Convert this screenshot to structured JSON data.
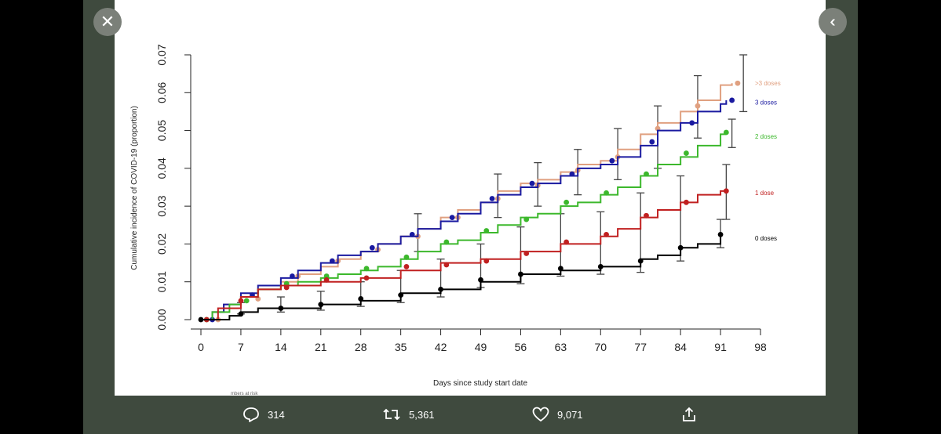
{
  "viewer": {
    "close_icon": "close-icon",
    "collapse_icon": "double-chevron-left-icon"
  },
  "actions": {
    "reply_count": "314",
    "retweet_count": "5,361",
    "like_count": "9,071"
  },
  "chart_data": {
    "type": "line",
    "title": "",
    "xlabel": "Days since study start date",
    "ylabel": "Cumulative incidence of COVID-19 (proportion)",
    "xlim": [
      0,
      98
    ],
    "ylim": [
      0,
      0.07
    ],
    "xticks": [
      0,
      7,
      14,
      21,
      28,
      35,
      42,
      49,
      56,
      63,
      70,
      77,
      84,
      91,
      98
    ],
    "yticks": [
      "0.00",
      "0.01",
      "0.02",
      "0.03",
      "0.04",
      "0.05",
      "0.06",
      "0.07"
    ],
    "series": [
      {
        "name": ">3 doses",
        "color": "#e0a080",
        "x": [
          0,
          2,
          4,
          7,
          10,
          14,
          17,
          21,
          24,
          28,
          31,
          35,
          38,
          42,
          45,
          49,
          52,
          56,
          59,
          63,
          66,
          70,
          73,
          77,
          80,
          84,
          87,
          91,
          93
        ],
        "y": [
          0,
          0.002,
          0.004,
          0.006,
          0.008,
          0.01,
          0.012,
          0.014,
          0.016,
          0.018,
          0.02,
          0.022,
          0.024,
          0.027,
          0.029,
          0.031,
          0.034,
          0.036,
          0.037,
          0.039,
          0.041,
          0.042,
          0.045,
          0.049,
          0.052,
          0.055,
          0.058,
          0.062,
          0.0625
        ],
        "points": [
          [
            3,
            0
          ],
          [
            10,
            0.0055
          ],
          [
            17,
            0.0115
          ],
          [
            24,
            0.0155
          ],
          [
            31,
            0.0185
          ],
          [
            38,
            0.022
          ],
          [
            45,
            0.027
          ],
          [
            52,
            0.032
          ],
          [
            59,
            0.0355
          ],
          [
            66,
            0.0395
          ],
          [
            73,
            0.043
          ],
          [
            80,
            0.0505
          ],
          [
            87,
            0.0565
          ],
          [
            94,
            0.0625
          ]
        ]
      },
      {
        "name": "3 doses",
        "color": "#1a1aa0",
        "x": [
          0,
          2,
          4,
          7,
          10,
          14,
          17,
          21,
          24,
          28,
          31,
          35,
          38,
          42,
          45,
          49,
          52,
          56,
          59,
          63,
          66,
          70,
          73,
          77,
          80,
          84,
          87,
          91,
          92
        ],
        "y": [
          0,
          0.002,
          0.004,
          0.007,
          0.009,
          0.011,
          0.013,
          0.015,
          0.017,
          0.018,
          0.02,
          0.022,
          0.024,
          0.026,
          0.028,
          0.031,
          0.033,
          0.035,
          0.036,
          0.038,
          0.04,
          0.041,
          0.043,
          0.046,
          0.05,
          0.052,
          0.055,
          0.057,
          0.058
        ],
        "points": [
          [
            2,
            0
          ],
          [
            9,
            0.0065
          ],
          [
            16,
            0.0115
          ],
          [
            23,
            0.0155
          ],
          [
            30,
            0.019
          ],
          [
            37,
            0.0225
          ],
          [
            44,
            0.027
          ],
          [
            51,
            0.032
          ],
          [
            58,
            0.036
          ],
          [
            65,
            0.0385
          ],
          [
            72,
            0.042
          ],
          [
            79,
            0.047
          ],
          [
            86,
            0.052
          ],
          [
            93,
            0.058
          ]
        ]
      },
      {
        "name": "2 doses",
        "color": "#3cb82c",
        "x": [
          0,
          2,
          5,
          7,
          10,
          14,
          17,
          21,
          24,
          28,
          31,
          35,
          38,
          42,
          45,
          49,
          52,
          56,
          59,
          63,
          66,
          70,
          73,
          77,
          80,
          84,
          87,
          91,
          92
        ],
        "y": [
          0,
          0.002,
          0.004,
          0.006,
          0.008,
          0.009,
          0.01,
          0.011,
          0.012,
          0.013,
          0.014,
          0.016,
          0.018,
          0.02,
          0.021,
          0.023,
          0.025,
          0.027,
          0.028,
          0.03,
          0.031,
          0.033,
          0.035,
          0.038,
          0.041,
          0.043,
          0.046,
          0.049,
          0.049
        ],
        "points": [
          [
            1,
            0
          ],
          [
            8,
            0.005
          ],
          [
            15,
            0.0095
          ],
          [
            22,
            0.0115
          ],
          [
            29,
            0.0135
          ],
          [
            36,
            0.0165
          ],
          [
            43,
            0.0205
          ],
          [
            50,
            0.0235
          ],
          [
            57,
            0.0265
          ],
          [
            64,
            0.031
          ],
          [
            71,
            0.0335
          ],
          [
            78,
            0.0385
          ],
          [
            85,
            0.044
          ],
          [
            92,
            0.0495
          ]
        ]
      },
      {
        "name": "1 dose",
        "color": "#c02020",
        "x": [
          0,
          3,
          7,
          10,
          14,
          21,
          28,
          35,
          42,
          49,
          56,
          63,
          70,
          73,
          77,
          80,
          84,
          87,
          91,
          92
        ],
        "y": [
          0,
          0.003,
          0.006,
          0.008,
          0.009,
          0.01,
          0.011,
          0.013,
          0.015,
          0.016,
          0.018,
          0.02,
          0.022,
          0.024,
          0.027,
          0.029,
          0.031,
          0.033,
          0.034,
          0.034
        ],
        "points": [
          [
            1,
            0
          ],
          [
            7,
            0.005
          ],
          [
            15,
            0.0085
          ],
          [
            22,
            0.0105
          ],
          [
            29,
            0.011
          ],
          [
            36,
            0.014
          ],
          [
            43,
            0.0145
          ],
          [
            50,
            0.0155
          ],
          [
            57,
            0.0175
          ],
          [
            64,
            0.0205
          ],
          [
            71,
            0.0225
          ],
          [
            78,
            0.0275
          ],
          [
            85,
            0.031
          ],
          [
            92,
            0.034
          ]
        ]
      },
      {
        "name": "0 doses",
        "color": "#000000",
        "x": [
          0,
          5,
          7,
          10,
          14,
          21,
          28,
          35,
          42,
          49,
          56,
          63,
          70,
          77,
          80,
          84,
          87,
          91
        ],
        "y": [
          0,
          0.001,
          0.002,
          0.003,
          0.003,
          0.004,
          0.005,
          0.007,
          0.008,
          0.01,
          0.012,
          0.013,
          0.014,
          0.016,
          0.017,
          0.019,
          0.02,
          0.022
        ],
        "points": [
          [
            0,
            0
          ],
          [
            7,
            0.0015
          ],
          [
            14,
            0.003
          ],
          [
            21,
            0.004
          ],
          [
            28,
            0.0055
          ],
          [
            35,
            0.0065
          ],
          [
            42,
            0.008
          ],
          [
            49,
            0.0105
          ],
          [
            56,
            0.012
          ],
          [
            63,
            0.0135
          ],
          [
            70,
            0.014
          ],
          [
            77,
            0.0155
          ],
          [
            84,
            0.019
          ],
          [
            91,
            0.0225
          ]
        ]
      }
    ],
    "error_bars": [
      {
        "x": 7,
        "low": 0.0015,
        "high": 0.0045
      },
      {
        "x": 14,
        "low": 0.002,
        "high": 0.006
      },
      {
        "x": 21,
        "low": 0.0025,
        "high": 0.0075
      },
      {
        "x": 28,
        "low": 0.0035,
        "high": 0.01
      },
      {
        "x": 35,
        "low": 0.0045,
        "high": 0.013
      },
      {
        "x": 38,
        "low": 0.018,
        "high": 0.028
      },
      {
        "x": 42,
        "low": 0.006,
        "high": 0.016
      },
      {
        "x": 49,
        "low": 0.0085,
        "high": 0.02
      },
      {
        "x": 52,
        "low": 0.027,
        "high": 0.0385
      },
      {
        "x": 56,
        "low": 0.0095,
        "high": 0.0245
      },
      {
        "x": 59,
        "low": 0.03,
        "high": 0.0415
      },
      {
        "x": 63,
        "low": 0.0115,
        "high": 0.028
      },
      {
        "x": 66,
        "low": 0.033,
        "high": 0.045
      },
      {
        "x": 70,
        "low": 0.012,
        "high": 0.0285
      },
      {
        "x": 73,
        "low": 0.037,
        "high": 0.0505
      },
      {
        "x": 77,
        "low": 0.0125,
        "high": 0.0335
      },
      {
        "x": 80,
        "low": 0.04,
        "high": 0.0565
      },
      {
        "x": 84,
        "low": 0.0155,
        "high": 0.038
      },
      {
        "x": 87,
        "low": 0.048,
        "high": 0.0645
      },
      {
        "x": 91,
        "low": 0.019,
        "high": 0.0265
      },
      {
        "x": 92,
        "low": 0.0265,
        "high": 0.041
      },
      {
        "x": 93,
        "low": 0.0455,
        "high": 0.053
      },
      {
        "x": 95,
        "low": 0.055,
        "high": 0.07
      }
    ],
    "legend": "right, end-of-line labels"
  },
  "footer": {
    "caption_fragment": "mbers at risk"
  }
}
